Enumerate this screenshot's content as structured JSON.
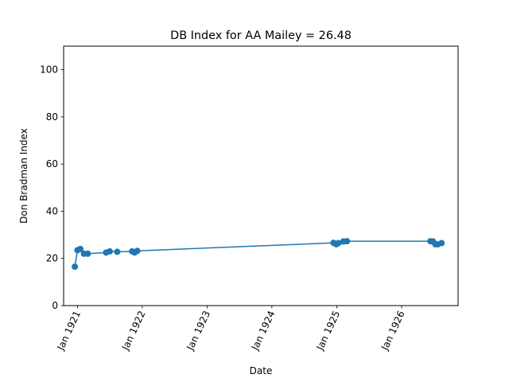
{
  "chart_data": {
    "type": "line",
    "title": "DB Index for AA Mailey = 26.48",
    "xlabel": "Date",
    "ylabel": "Don Bradman Index",
    "ylim": [
      0,
      110
    ],
    "xlim": [
      "1920-10-15",
      "1926-11-15"
    ],
    "x_ticks": [
      {
        "date": "1921-01-01",
        "label": "Jan 1921"
      },
      {
        "date": "1922-01-01",
        "label": "Jan 1922"
      },
      {
        "date": "1923-01-01",
        "label": "Jan 1923"
      },
      {
        "date": "1924-01-01",
        "label": "Jan 1924"
      },
      {
        "date": "1925-01-01",
        "label": "Jan 1925"
      },
      {
        "date": "1926-01-01",
        "label": "Jan 1926"
      }
    ],
    "y_ticks": [
      0,
      20,
      40,
      60,
      80,
      100
    ],
    "grid": false,
    "color": "#1f77b4",
    "marker": "circle",
    "series": [
      {
        "points": [
          {
            "x": "1920-12-17",
            "y": 16.5
          },
          {
            "x": "1921-01-01",
            "y": 23.5
          },
          {
            "x": "1921-01-17",
            "y": 24.0
          },
          {
            "x": "1921-02-07",
            "y": 22.0
          },
          {
            "x": "1921-02-28",
            "y": 22.0
          },
          {
            "x": "1921-06-11",
            "y": 22.5
          },
          {
            "x": "1921-07-02",
            "y": 23.0
          },
          {
            "x": "1921-08-13",
            "y": 22.8
          },
          {
            "x": "1921-11-05",
            "y": 23.0
          },
          {
            "x": "1921-11-19",
            "y": 22.5
          },
          {
            "x": "1921-12-04",
            "y": 23.2
          },
          {
            "x": "1924-12-13",
            "y": 26.6
          },
          {
            "x": "1924-12-29",
            "y": 26.0
          },
          {
            "x": "1925-01-10",
            "y": 26.5
          },
          {
            "x": "1925-02-07",
            "y": 27.2
          },
          {
            "x": "1925-02-27",
            "y": 27.3
          },
          {
            "x": "1926-06-12",
            "y": 27.3
          },
          {
            "x": "1926-06-26",
            "y": 27.2
          },
          {
            "x": "1926-07-10",
            "y": 26.0
          },
          {
            "x": "1926-07-24",
            "y": 26.0
          },
          {
            "x": "1926-08-14",
            "y": 26.5
          }
        ]
      }
    ]
  }
}
